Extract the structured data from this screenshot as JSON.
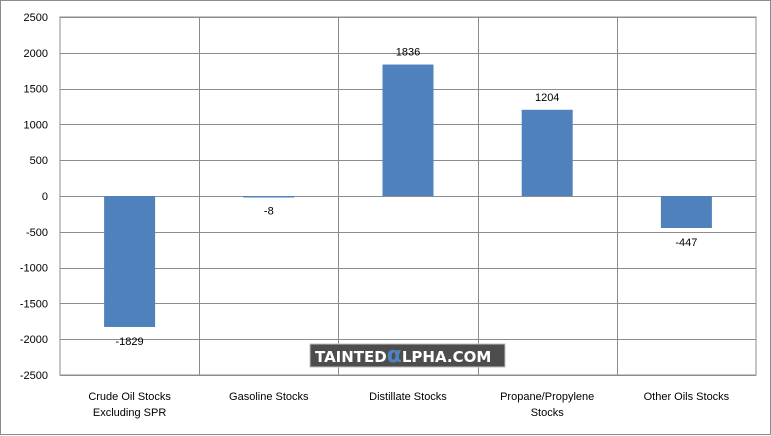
{
  "chart_data": {
    "type": "bar",
    "categories": [
      [
        "Crude Oil Stocks",
        "Excluding SPR"
      ],
      [
        "Gasoline Stocks"
      ],
      [
        "Distillate Stocks"
      ],
      [
        "Propane/Propylene",
        "Stocks"
      ],
      [
        "Other Oils Stocks"
      ]
    ],
    "values": [
      -1829,
      -8,
      1836,
      1204,
      -447
    ],
    "data_labels": [
      "-1829",
      "-8",
      "1836",
      "1204",
      "-447"
    ],
    "yticks": [
      "2500",
      "2000",
      "1500",
      "1000",
      "500",
      "0",
      "-500",
      "-1000",
      "-1500",
      "-2000",
      "-2500"
    ],
    "ylim": [
      -2500,
      2500
    ],
    "grid": true,
    "bar_color": "#4f81bd",
    "title": "",
    "xlabel": "",
    "ylabel": ""
  },
  "watermark": {
    "prefix": "TAINTED",
    "glyph": "α",
    "suffix": "LPHA.COM"
  }
}
